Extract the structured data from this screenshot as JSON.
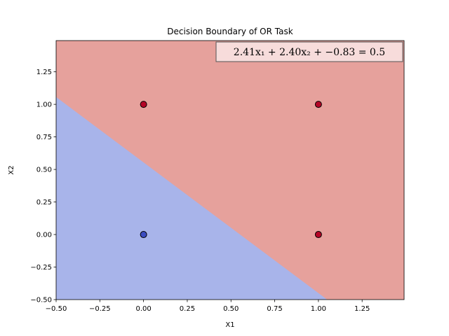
{
  "chart_data": {
    "type": "scatter",
    "title": "Decision Boundary of OR Task",
    "xlabel": "X1",
    "ylabel": "X2",
    "xlim": [
      -0.5,
      1.49
    ],
    "ylim": [
      -0.5,
      1.49
    ],
    "xticks": [
      -0.5,
      -0.25,
      0.0,
      0.25,
      0.5,
      0.75,
      1.0,
      1.25
    ],
    "yticks": [
      -0.5,
      -0.25,
      0.0,
      0.25,
      0.5,
      0.75,
      1.0,
      1.25
    ],
    "xtick_labels": [
      "−0.50",
      "−0.25",
      "0.00",
      "0.25",
      "0.50",
      "0.75",
      "1.00",
      "1.25"
    ],
    "ytick_labels": [
      "−0.50",
      "−0.25",
      "0.00",
      "0.25",
      "0.50",
      "0.75",
      "1.00",
      "1.25"
    ],
    "decision_boundary": {
      "w1": 2.41,
      "w2": 2.4,
      "b": -0.83,
      "threshold": 0.5
    },
    "annotation": "2.41x₁ + 2.40x₂ + −0.83 = 0.5",
    "region_colors": {
      "class_0": "#a8b4ea",
      "class_1": "#e6a19c"
    },
    "points": [
      {
        "x": 0,
        "y": 0,
        "label": 0,
        "color": "#3b4cc0"
      },
      {
        "x": 0,
        "y": 1,
        "label": 1,
        "color": "#b40426"
      },
      {
        "x": 1,
        "y": 0,
        "label": 1,
        "color": "#b40426"
      },
      {
        "x": 1,
        "y": 1,
        "label": 1,
        "color": "#b40426"
      }
    ],
    "grid": false
  }
}
